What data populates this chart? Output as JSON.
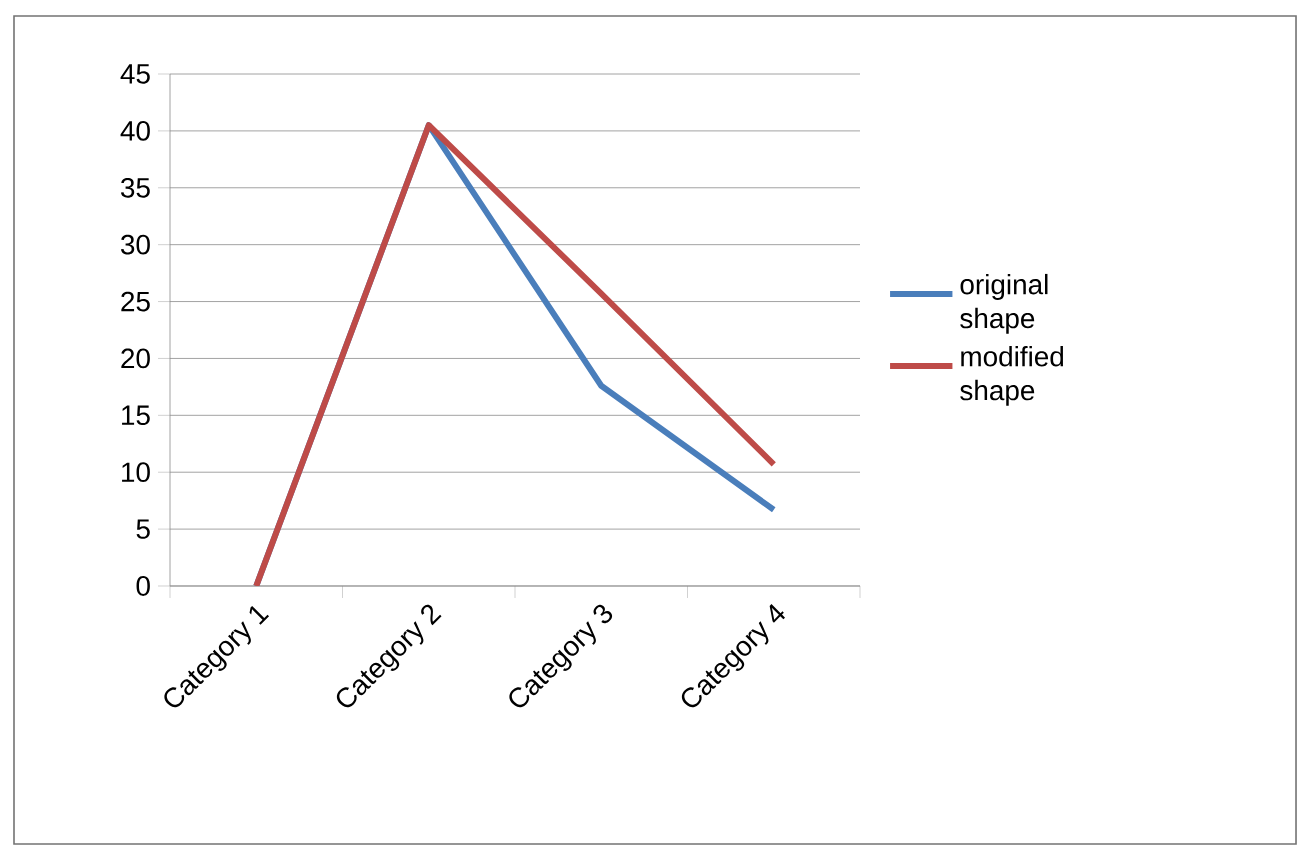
{
  "chart_data": {
    "type": "line",
    "categories": [
      "Category 1",
      "Category 2",
      "Category 3",
      "Category 4"
    ],
    "series": [
      {
        "name": "original shape",
        "color": "#4a7ebb",
        "values": [
          0,
          40.5,
          17.6,
          6.7
        ]
      },
      {
        "name": "modified shape",
        "color": "#be4b48",
        "values": [
          0,
          40.5,
          25.7,
          10.7
        ]
      }
    ],
    "ylim": [
      0,
      45
    ],
    "yticks": [
      0,
      5,
      10,
      15,
      20,
      25,
      30,
      35,
      40,
      45
    ],
    "grid": "y",
    "legend": "right",
    "marker": "none",
    "line_style": "solid"
  }
}
